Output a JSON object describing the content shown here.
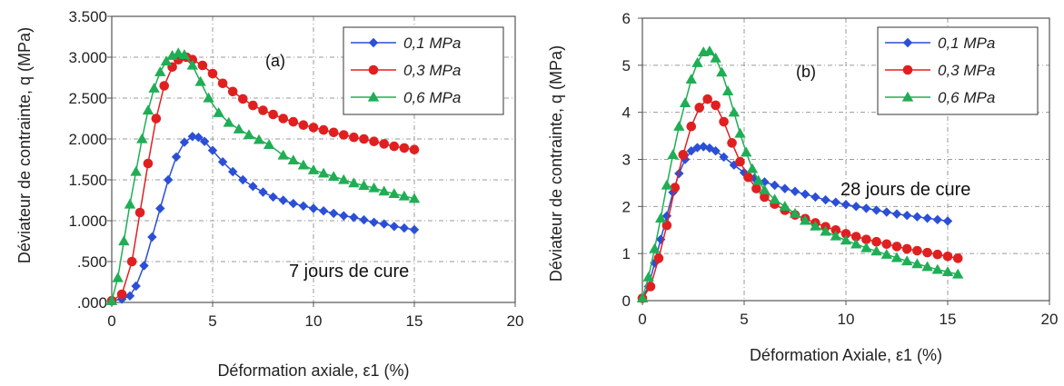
{
  "chart_data": [
    {
      "type": "scatter",
      "panel_label": "(a)",
      "annotation": "7 jours de cure",
      "xlabel": "Déformation axiale, ε1 (%)",
      "ylabel": "Déviateur de contrainte, q (MPa)",
      "xlim": [
        0,
        20
      ],
      "ylim": [
        0,
        3.5
      ],
      "xticks": [
        0,
        5,
        10,
        15,
        20
      ],
      "xtick_labels": [
        "0",
        "5",
        "10",
        "15",
        "20"
      ],
      "yticks": [
        0,
        0.5,
        1,
        1.5,
        2,
        2.5,
        3,
        3.5
      ],
      "ytick_labels": [
        ".000",
        ".500",
        "1.000",
        "1.500",
        "2.000",
        "2.500",
        "3.000",
        "3.500"
      ],
      "grid": true,
      "legend_position": "top-right",
      "series": [
        {
          "name": "0,1 MPa",
          "color": "#2b4fd6",
          "marker": "diamond",
          "x": [
            0,
            0.5,
            0.9,
            1.2,
            1.6,
            2.0,
            2.4,
            2.8,
            3.2,
            3.6,
            4.0,
            4.3,
            4.6,
            5.0,
            5.5,
            6.0,
            6.5,
            7.0,
            7.5,
            8.0,
            8.5,
            9.0,
            9.5,
            10.0,
            10.5,
            11.0,
            11.5,
            12.0,
            12.5,
            13.0,
            13.5,
            14.0,
            14.5,
            15.0
          ],
          "y": [
            0.02,
            0.04,
            0.08,
            0.2,
            0.45,
            0.8,
            1.15,
            1.5,
            1.78,
            1.96,
            2.03,
            2.02,
            1.97,
            1.86,
            1.72,
            1.6,
            1.5,
            1.42,
            1.35,
            1.29,
            1.25,
            1.21,
            1.18,
            1.15,
            1.12,
            1.09,
            1.06,
            1.04,
            1.01,
            0.98,
            0.96,
            0.93,
            0.91,
            0.89
          ]
        },
        {
          "name": "0,3 MPa",
          "color": "#e02020",
          "marker": "circle",
          "x": [
            0,
            0.5,
            1.0,
            1.4,
            1.8,
            2.2,
            2.6,
            3.0,
            3.3,
            3.7,
            4.0,
            4.5,
            5.0,
            5.5,
            6.0,
            6.5,
            7.0,
            7.5,
            8.0,
            8.5,
            9.0,
            9.5,
            10.0,
            10.5,
            11.0,
            11.5,
            12.0,
            12.5,
            13.0,
            13.5,
            14.0,
            14.5,
            15.0
          ],
          "y": [
            0.02,
            0.1,
            0.5,
            1.1,
            1.7,
            2.25,
            2.65,
            2.88,
            2.97,
            3.0,
            2.97,
            2.9,
            2.8,
            2.68,
            2.58,
            2.49,
            2.41,
            2.35,
            2.3,
            2.25,
            2.21,
            2.17,
            2.14,
            2.11,
            2.08,
            2.05,
            2.02,
            2.0,
            1.97,
            1.94,
            1.91,
            1.89,
            1.87
          ]
        },
        {
          "name": "0,6 MPa",
          "color": "#1fae55",
          "marker": "triangle",
          "x": [
            0,
            0.3,
            0.6,
            0.9,
            1.2,
            1.5,
            1.8,
            2.1,
            2.4,
            2.7,
            3.0,
            3.3,
            3.6,
            4.0,
            4.4,
            4.8,
            5.3,
            5.8,
            6.3,
            6.8,
            7.3,
            7.8,
            8.5,
            9.0,
            9.5,
            10.0,
            10.5,
            11.0,
            11.5,
            12.0,
            12.5,
            13.0,
            13.5,
            14.0,
            14.5,
            15.0
          ],
          "y": [
            0.02,
            0.3,
            0.75,
            1.2,
            1.6,
            2.0,
            2.35,
            2.62,
            2.82,
            2.95,
            3.02,
            3.05,
            3.03,
            2.9,
            2.7,
            2.5,
            2.32,
            2.2,
            2.12,
            2.05,
            1.99,
            1.93,
            1.8,
            1.74,
            1.68,
            1.62,
            1.58,
            1.54,
            1.5,
            1.46,
            1.43,
            1.4,
            1.36,
            1.33,
            1.3,
            1.27
          ]
        }
      ]
    },
    {
      "type": "scatter",
      "panel_label": "(b)",
      "annotation": "28 jours de cure",
      "xlabel": "Déformation Axiale, ε1 (%)",
      "ylabel": "Déviateur de contrainte, q (MPa)",
      "xlim": [
        0,
        20
      ],
      "ylim": [
        0,
        6
      ],
      "xticks": [
        0,
        5,
        10,
        15,
        20
      ],
      "xtick_labels": [
        "0",
        "5",
        "10",
        "15",
        "20"
      ],
      "yticks": [
        0,
        1,
        2,
        3,
        4,
        5,
        6
      ],
      "ytick_labels": [
        "0",
        "1",
        "2",
        "3",
        "4",
        "5",
        "6"
      ],
      "grid": true,
      "legend_position": "top-right",
      "series": [
        {
          "name": "0,1 MPa",
          "color": "#2b4fd6",
          "marker": "diamond",
          "x": [
            0,
            0.3,
            0.6,
            0.9,
            1.2,
            1.5,
            1.8,
            2.1,
            2.4,
            2.7,
            3.0,
            3.3,
            3.6,
            4.0,
            4.5,
            5.0,
            5.5,
            6.0,
            6.5,
            7.0,
            7.5,
            8.0,
            8.5,
            9.0,
            9.5,
            10.0,
            10.5,
            11.0,
            11.5,
            12.0,
            12.5,
            13.0,
            13.5,
            14.0,
            14.5,
            15.0
          ],
          "y": [
            0.05,
            0.3,
            0.8,
            1.3,
            1.8,
            2.3,
            2.7,
            3.0,
            3.18,
            3.25,
            3.27,
            3.24,
            3.18,
            3.05,
            2.88,
            2.72,
            2.6,
            2.52,
            2.45,
            2.38,
            2.32,
            2.26,
            2.2,
            2.14,
            2.09,
            2.04,
            2.0,
            1.96,
            1.92,
            1.88,
            1.84,
            1.81,
            1.78,
            1.75,
            1.72,
            1.69
          ]
        },
        {
          "name": "0,3 MPa",
          "color": "#e02020",
          "marker": "circle",
          "x": [
            0,
            0.4,
            0.8,
            1.2,
            1.6,
            2.0,
            2.4,
            2.8,
            3.2,
            3.6,
            4.0,
            4.4,
            4.8,
            5.2,
            5.6,
            6.0,
            6.5,
            7.0,
            7.5,
            8.0,
            8.5,
            9.0,
            9.5,
            10.0,
            10.5,
            11.0,
            11.5,
            12.0,
            12.5,
            13.0,
            13.5,
            14.0,
            14.5,
            15.0,
            15.5
          ],
          "y": [
            0.05,
            0.3,
            0.9,
            1.6,
            2.4,
            3.1,
            3.7,
            4.1,
            4.28,
            4.15,
            3.8,
            3.35,
            2.95,
            2.62,
            2.38,
            2.2,
            2.05,
            1.92,
            1.82,
            1.74,
            1.65,
            1.57,
            1.5,
            1.42,
            1.36,
            1.3,
            1.25,
            1.2,
            1.15,
            1.1,
            1.06,
            1.02,
            0.98,
            0.94,
            0.9
          ]
        },
        {
          "name": "0,6 MPa",
          "color": "#1fae55",
          "marker": "triangle",
          "x": [
            0,
            0.3,
            0.6,
            0.9,
            1.2,
            1.5,
            1.8,
            2.1,
            2.4,
            2.7,
            3.0,
            3.3,
            3.6,
            3.9,
            4.2,
            4.5,
            4.8,
            5.1,
            5.4,
            5.7,
            6.0,
            6.5,
            7.0,
            7.5,
            8.0,
            8.5,
            9.0,
            9.5,
            10.0,
            10.5,
            11.0,
            11.5,
            12.0,
            12.5,
            13.0,
            13.5,
            14.0,
            14.5,
            15.0,
            15.5
          ],
          "y": [
            0.05,
            0.5,
            1.1,
            1.75,
            2.45,
            3.1,
            3.7,
            4.2,
            4.7,
            5.05,
            5.28,
            5.3,
            5.15,
            4.85,
            4.45,
            4.0,
            3.55,
            3.15,
            2.8,
            2.55,
            2.35,
            2.15,
            2.0,
            1.85,
            1.7,
            1.58,
            1.47,
            1.37,
            1.28,
            1.2,
            1.12,
            1.05,
            0.98,
            0.91,
            0.84,
            0.78,
            0.72,
            0.66,
            0.61,
            0.56
          ]
        }
      ]
    }
  ]
}
